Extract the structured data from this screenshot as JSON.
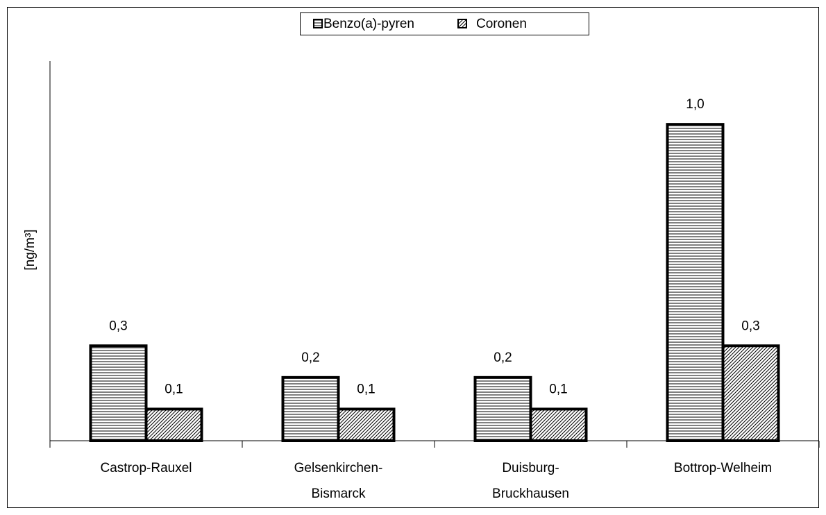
{
  "chart_data": {
    "type": "bar",
    "categories": [
      [
        "Castrop-Rauxel"
      ],
      [
        "Gelsenkirchen-",
        "Bismarck"
      ],
      [
        "Duisburg-",
        "Bruckhausen"
      ],
      [
        "Bottrop-Welheim"
      ]
    ],
    "y_label": "[ng/m³]",
    "ylim": [
      0,
      1.2
    ],
    "series": [
      {
        "name": "Benzo(a)-pyren",
        "color": "#000000",
        "pattern": "horizontal",
        "values": [
          0.3,
          0.2,
          0.2,
          1.0
        ],
        "value_labels": [
          "0,3",
          "0,2",
          "0,2",
          "1,0"
        ]
      },
      {
        "name": "Coronen",
        "color": "#000000",
        "pattern": "diagonal",
        "values": [
          0.1,
          0.1,
          0.1,
          0.3
        ],
        "value_labels": [
          "0,1",
          "0,1",
          "0,1",
          "0,3"
        ]
      }
    ],
    "legend": "top"
  }
}
